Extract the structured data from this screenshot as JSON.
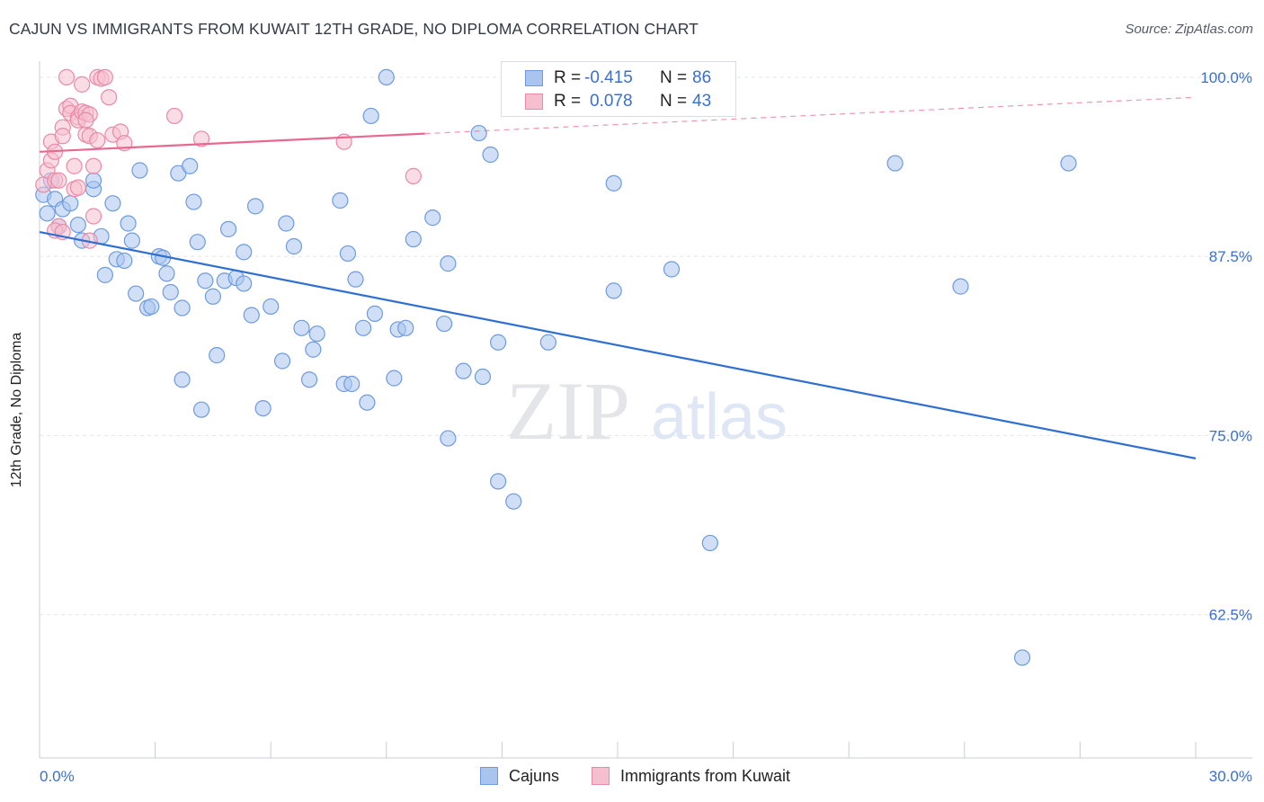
{
  "title": "CAJUN VS IMMIGRANTS FROM KUWAIT 12TH GRADE, NO DIPLOMA CORRELATION CHART",
  "source": "Source: ZipAtlas.com",
  "watermark": {
    "zip": "ZIP",
    "atlas": "atlas"
  },
  "stats": [
    {
      "r_label": "R =",
      "r_value": "-0.415",
      "n_label": "N =",
      "n_value": "86",
      "color": "#a9c5ef",
      "border": "#6d9bdf"
    },
    {
      "r_label": "R =",
      "r_value": "0.078",
      "n_label": "N =",
      "n_value": "43",
      "color": "#f6bfd0",
      "border": "#ea8aa8"
    }
  ],
  "legend": [
    {
      "label": "Cajuns",
      "color": "#a9c5ef",
      "border": "#6d9bdf"
    },
    {
      "label": "Immigrants from Kuwait",
      "color": "#f6bfd0",
      "border": "#ea8aa8"
    }
  ],
  "chart_data": {
    "type": "scatter",
    "ylabel": "12th Grade, No Diploma",
    "xlim": [
      0,
      30
    ],
    "ylim": [
      52.5,
      101.5
    ],
    "x_tick_labels": [
      {
        "value": 0,
        "label": "0.0%"
      },
      {
        "value": 30,
        "label": "30.0%"
      }
    ],
    "y_tick_labels": [
      {
        "value": 100,
        "label": "100.0%"
      },
      {
        "value": 87.5,
        "label": "87.5%"
      },
      {
        "value": 75,
        "label": "75.0%"
      },
      {
        "value": 62.5,
        "label": "62.5%"
      }
    ],
    "grid": "horizontal dashed",
    "series": [
      {
        "name": "Cajuns",
        "color": "#6d9bdf",
        "fill": "#a9c5ef",
        "trend": {
          "x0": 0,
          "y0": 89.2,
          "x1": 30,
          "y1": 73.4,
          "color": "#2f6fd0",
          "dashed_from": null
        },
        "points": [
          [
            0.1,
            91.8
          ],
          [
            0.2,
            90.5
          ],
          [
            0.3,
            92.8
          ],
          [
            0.4,
            91.5
          ],
          [
            0.5,
            89.6
          ],
          [
            0.6,
            90.8
          ],
          [
            0.8,
            91.2
          ],
          [
            1.0,
            89.7
          ],
          [
            1.1,
            88.6
          ],
          [
            1.4,
            92.2
          ],
          [
            1.4,
            92.8
          ],
          [
            1.6,
            88.9
          ],
          [
            1.7,
            86.2
          ],
          [
            1.9,
            91.2
          ],
          [
            2.0,
            87.3
          ],
          [
            2.2,
            87.2
          ],
          [
            2.3,
            89.8
          ],
          [
            2.4,
            88.6
          ],
          [
            2.5,
            84.9
          ],
          [
            2.6,
            93.5
          ],
          [
            2.8,
            83.9
          ],
          [
            2.9,
            84.0
          ],
          [
            3.1,
            87.5
          ],
          [
            3.2,
            87.4
          ],
          [
            3.3,
            86.3
          ],
          [
            3.4,
            85.0
          ],
          [
            3.6,
            93.3
          ],
          [
            3.7,
            78.9
          ],
          [
            3.7,
            83.9
          ],
          [
            3.9,
            93.8
          ],
          [
            4.0,
            91.3
          ],
          [
            4.1,
            88.5
          ],
          [
            4.2,
            76.8
          ],
          [
            4.3,
            85.8
          ],
          [
            4.5,
            84.7
          ],
          [
            4.6,
            80.6
          ],
          [
            4.8,
            85.8
          ],
          [
            4.9,
            89.4
          ],
          [
            5.1,
            86.0
          ],
          [
            5.3,
            87.8
          ],
          [
            5.3,
            85.6
          ],
          [
            5.5,
            83.4
          ],
          [
            5.6,
            91.0
          ],
          [
            5.8,
            76.9
          ],
          [
            6.0,
            84.0
          ],
          [
            6.3,
            80.2
          ],
          [
            6.4,
            89.8
          ],
          [
            6.6,
            88.2
          ],
          [
            6.8,
            82.5
          ],
          [
            7.0,
            78.9
          ],
          [
            7.1,
            81.0
          ],
          [
            7.2,
            82.1
          ],
          [
            7.8,
            91.4
          ],
          [
            7.9,
            78.6
          ],
          [
            8.0,
            87.7
          ],
          [
            8.1,
            78.6
          ],
          [
            8.2,
            85.9
          ],
          [
            8.4,
            82.5
          ],
          [
            8.5,
            77.3
          ],
          [
            8.6,
            97.3
          ],
          [
            8.7,
            83.5
          ],
          [
            9.0,
            100.0
          ],
          [
            9.2,
            79.0
          ],
          [
            9.3,
            82.4
          ],
          [
            9.5,
            82.5
          ],
          [
            9.7,
            88.7
          ],
          [
            10.2,
            90.2
          ],
          [
            10.5,
            82.8
          ],
          [
            10.6,
            87.0
          ],
          [
            10.6,
            74.8
          ],
          [
            11.0,
            79.5
          ],
          [
            11.4,
            96.1
          ],
          [
            11.5,
            79.1
          ],
          [
            11.7,
            94.6
          ],
          [
            11.9,
            71.8
          ],
          [
            11.9,
            81.5
          ],
          [
            12.3,
            70.4
          ],
          [
            13.2,
            81.5
          ],
          [
            14.9,
            92.6
          ],
          [
            14.9,
            85.1
          ],
          [
            16.4,
            86.6
          ],
          [
            17.4,
            67.5
          ],
          [
            22.2,
            94.0
          ],
          [
            23.9,
            85.4
          ],
          [
            25.5,
            59.5
          ],
          [
            26.7,
            94.0
          ]
        ]
      },
      {
        "name": "Immigrants from Kuwait",
        "color": "#ea8aa8",
        "fill": "#f6bfd0",
        "trend": {
          "x0": 0,
          "y0": 94.8,
          "x1": 30,
          "y1": 98.6,
          "color": "#e8688f",
          "dashed_from": 10.0
        },
        "points": [
          [
            0.1,
            92.5
          ],
          [
            0.2,
            93.5
          ],
          [
            0.3,
            94.2
          ],
          [
            0.3,
            95.5
          ],
          [
            0.4,
            92.8
          ],
          [
            0.4,
            94.8
          ],
          [
            0.5,
            89.6
          ],
          [
            0.6,
            96.5
          ],
          [
            0.6,
            95.9
          ],
          [
            0.7,
            100.0
          ],
          [
            0.7,
            97.8
          ],
          [
            0.8,
            98.0
          ],
          [
            0.8,
            97.5
          ],
          [
            0.9,
            92.2
          ],
          [
            0.9,
            93.8
          ],
          [
            1.0,
            97.2
          ],
          [
            1.0,
            97.0
          ],
          [
            1.0,
            92.3
          ],
          [
            1.1,
            97.6
          ],
          [
            1.1,
            99.5
          ],
          [
            1.2,
            97.5
          ],
          [
            1.2,
            96.0
          ],
          [
            1.3,
            97.4
          ],
          [
            1.3,
            95.9
          ],
          [
            1.3,
            88.6
          ],
          [
            1.4,
            93.8
          ],
          [
            1.4,
            90.3
          ],
          [
            1.5,
            100.0
          ],
          [
            1.5,
            95.6
          ],
          [
            1.6,
            99.9
          ],
          [
            1.7,
            100.0
          ],
          [
            1.8,
            98.6
          ],
          [
            1.9,
            96.0
          ],
          [
            2.1,
            96.2
          ],
          [
            2.2,
            95.4
          ],
          [
            3.5,
            97.3
          ],
          [
            4.2,
            95.7
          ],
          [
            7.9,
            95.5
          ],
          [
            9.7,
            93.1
          ],
          [
            0.4,
            89.3
          ],
          [
            0.5,
            92.8
          ],
          [
            0.6,
            89.2
          ],
          [
            1.2,
            97.0
          ]
        ]
      }
    ]
  }
}
